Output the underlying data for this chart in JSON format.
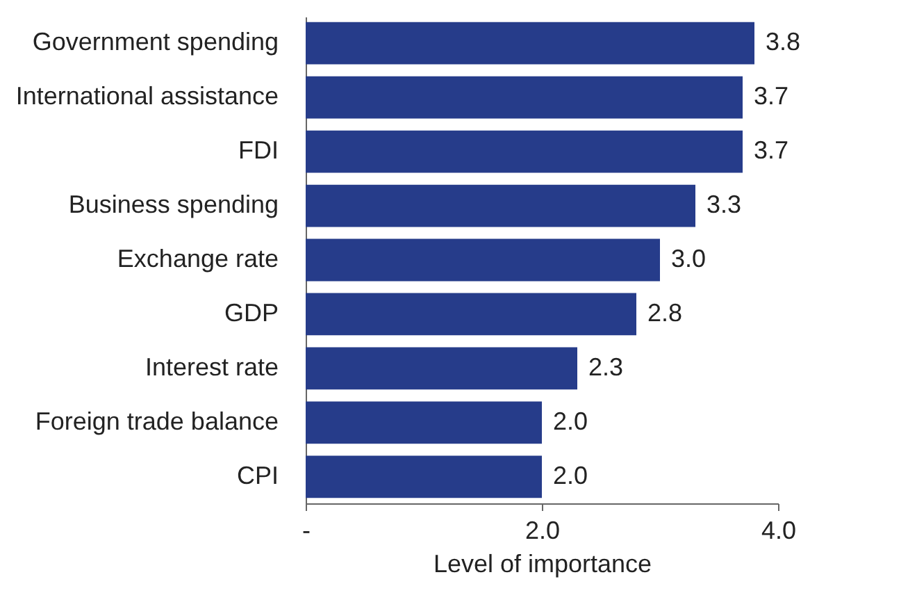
{
  "chart_data": {
    "type": "bar",
    "orientation": "horizontal",
    "xlabel": "Level of importance",
    "categories": [
      "Government spending",
      "International assistance",
      "FDI",
      "Business spending",
      "Exchange rate",
      "GDP",
      "Interest rate",
      "Foreign trade balance",
      "CPI"
    ],
    "values": [
      3.8,
      3.7,
      3.7,
      3.3,
      3.0,
      2.8,
      2.3,
      2.0,
      2.0
    ],
    "value_labels": [
      "3.8",
      "3.7",
      "3.7",
      "3.3",
      "3.0",
      "2.8",
      "2.3",
      "2.0",
      "2.0"
    ],
    "color": "#263c8a",
    "xlim": [
      0,
      4.0
    ],
    "xticks": [
      {
        "value": 0,
        "label": "-"
      },
      {
        "value": 2.0,
        "label": "2.0"
      },
      {
        "value": 4.0,
        "label": "4.0"
      }
    ]
  }
}
